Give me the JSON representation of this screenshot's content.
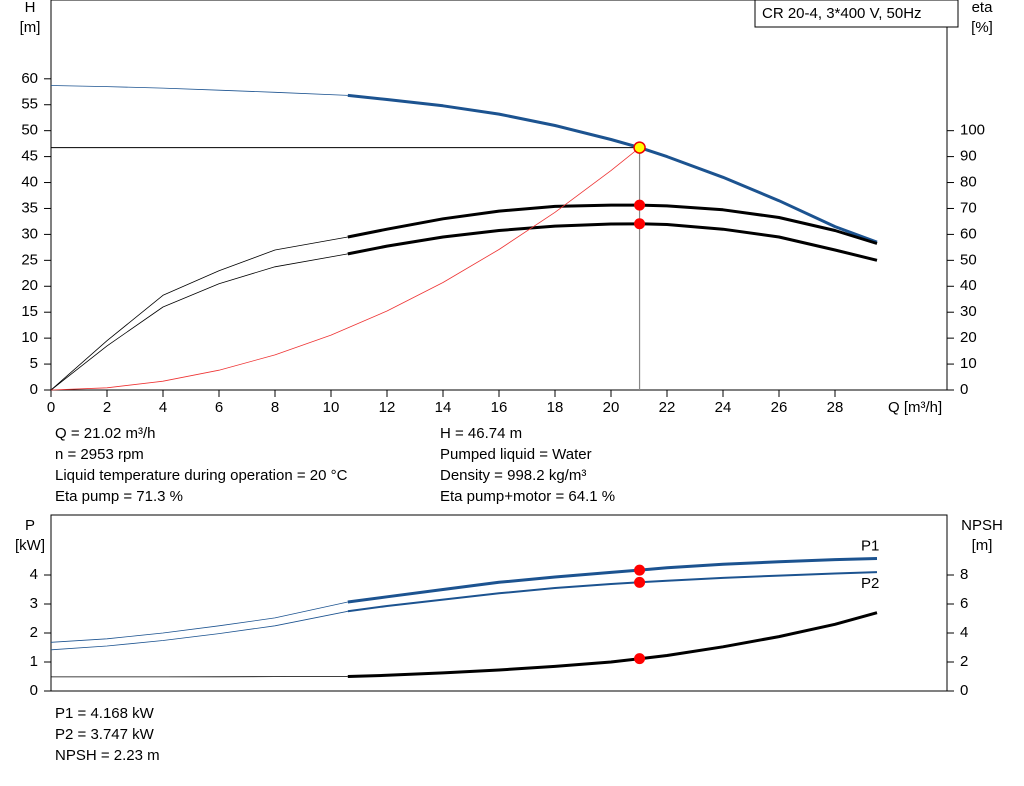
{
  "chart_data": [
    {
      "type": "line",
      "title": "CR 20-4, 3*400 V, 50Hz",
      "y_label": [
        "H",
        "[m]"
      ],
      "y2_label": [
        "eta",
        "[%]"
      ],
      "x_label": "Q [m³/h]",
      "xlim": [
        0,
        32
      ],
      "xticks": [
        0,
        2,
        4,
        6,
        8,
        10,
        12,
        14,
        16,
        18,
        20,
        22,
        24,
        26,
        28
      ],
      "ylim": [
        0,
        75
      ],
      "yticks": [
        0,
        5,
        10,
        15,
        20,
        25,
        30,
        35,
        40,
        45,
        50,
        55,
        60
      ],
      "y2lim": [
        0,
        150
      ],
      "y2ticks": [
        0,
        10,
        20,
        30,
        40,
        50,
        60,
        70,
        80,
        90,
        100
      ],
      "duty_q": 21.02,
      "thick_from": 10.6,
      "crosshair": true,
      "series": [
        {
          "color": "#1c5390",
          "style": "duty",
          "marker": "#ffff00",
          "x": [
            0,
            2,
            4,
            6,
            8,
            10.6,
            12,
            14,
            16,
            18,
            20,
            21.02,
            22,
            24,
            26,
            28,
            29.5
          ],
          "values": [
            58.7,
            58.5,
            58.2,
            57.8,
            57.4,
            56.8,
            56.0,
            54.8,
            53.2,
            51.0,
            48.3,
            46.74,
            45.0,
            41.0,
            36.5,
            31.5,
            28.5
          ]
        },
        {
          "color": "#000000",
          "style": "duty",
          "marker": "#ff0000",
          "axis": "y2",
          "x": [
            0,
            2,
            4,
            6,
            8,
            10.6,
            12,
            14,
            16,
            18,
            20,
            21.02,
            22,
            24,
            26,
            28,
            29.5
          ],
          "values": [
            0,
            19,
            36.5,
            46,
            54,
            59,
            62,
            66,
            69,
            70.8,
            71.3,
            71.3,
            71,
            69.5,
            66.5,
            61.5,
            56.5
          ]
        },
        {
          "color": "#000000",
          "style": "duty",
          "marker": "#ff0000",
          "axis": "y2",
          "x": [
            0,
            2,
            4,
            6,
            8,
            10.6,
            12,
            14,
            16,
            18,
            20,
            21.02,
            22,
            24,
            26,
            28,
            29.5
          ],
          "values": [
            0,
            17,
            32,
            41,
            47.5,
            52.5,
            55.5,
            59,
            61.5,
            63.2,
            64,
            64.1,
            63.8,
            62,
            59,
            54,
            50
          ]
        },
        {
          "color": "#ee3333",
          "style": "thin",
          "x": [
            0,
            2,
            4,
            6,
            8,
            10,
            12,
            14,
            16,
            18,
            20,
            21.02
          ],
          "values": [
            0,
            0.42,
            1.69,
            3.81,
            6.77,
            10.58,
            15.23,
            20.73,
            27.08,
            34.27,
            42.31,
            46.74
          ]
        }
      ],
      "info": [
        [
          "Q = 21.02 m³/h",
          "n = 2953 rpm",
          "Liquid temperature during operation = 20 °C",
          "Eta pump = 71.3 %"
        ],
        [
          "H = 46.74 m",
          "Pumped liquid = Water",
          "Density = 998.2 kg/m³",
          "Eta pump+motor = 64.1 %"
        ]
      ]
    },
    {
      "type": "line",
      "y_label": [
        "P",
        "[kW]"
      ],
      "y2_label": [
        "NPSH",
        "[m]"
      ],
      "xlim": [
        0,
        32
      ],
      "ylim": [
        0,
        6
      ],
      "yticks": [
        0,
        1,
        2,
        3,
        4
      ],
      "y2lim": [
        0,
        12
      ],
      "y2ticks": [
        0,
        2,
        4,
        6,
        8
      ],
      "duty_q": 21.02,
      "thick_from": 10.6,
      "series": [
        {
          "name": "P1",
          "color": "#1c5390",
          "style": "duty",
          "marker": "#ff0000",
          "x": [
            0,
            2,
            4,
            6,
            8,
            10.6,
            12,
            14,
            16,
            18,
            20,
            21.02,
            22,
            24,
            26,
            28,
            29.5
          ],
          "values": [
            1.68,
            1.8,
            2.0,
            2.25,
            2.52,
            3.07,
            3.25,
            3.5,
            3.75,
            3.93,
            4.09,
            4.168,
            4.25,
            4.37,
            4.46,
            4.53,
            4.57
          ]
        },
        {
          "name": "P2",
          "color": "#1c5390",
          "style": "duty-thin",
          "marker": "#ff0000",
          "x": [
            0,
            2,
            4,
            6,
            8,
            10.6,
            12,
            14,
            16,
            18,
            20,
            21.02,
            22,
            24,
            26,
            28,
            29.5
          ],
          "values": [
            1.42,
            1.55,
            1.74,
            1.98,
            2.25,
            2.75,
            2.93,
            3.15,
            3.37,
            3.55,
            3.69,
            3.747,
            3.8,
            3.9,
            3.98,
            4.05,
            4.1
          ]
        },
        {
          "color": "#000000",
          "style": "duty",
          "marker": "#ff0000",
          "axis": "y2",
          "x": [
            0,
            2,
            4,
            6,
            8,
            10.6,
            12,
            14,
            16,
            18,
            20,
            21.02,
            22,
            24,
            26,
            28,
            29.5
          ],
          "values": [
            0.97,
            0.97,
            0.97,
            0.98,
            0.99,
            1.0,
            1.08,
            1.25,
            1.45,
            1.7,
            2.0,
            2.23,
            2.45,
            3.05,
            3.75,
            4.6,
            5.4
          ]
        }
      ],
      "info": [
        [
          "P1 = 4.168 kW",
          "P2 = 3.747 kW",
          "NPSH = 2.23 m"
        ]
      ]
    }
  ]
}
